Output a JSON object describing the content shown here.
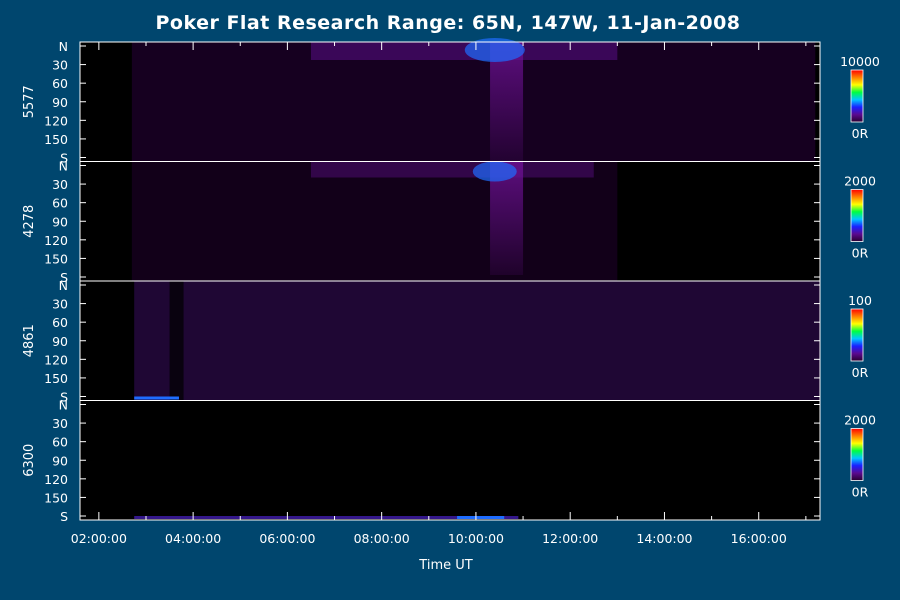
{
  "chart_data": {
    "type": "heatmap",
    "title": "Poker Flat Research Range: 65N, 147W, 11-Jan-2008",
    "xlabel": "Time UT",
    "x_ticks": [
      "02:00:00",
      "04:00:00",
      "06:00:00",
      "08:00:00",
      "10:00:00",
      "12:00:00",
      "14:00:00",
      "16:00:00"
    ],
    "x_range_hours": [
      1.6,
      17.3
    ],
    "y_ticks": [
      "N",
      "30",
      "60",
      "90",
      "120",
      "150",
      "S"
    ],
    "y_range_deg": [
      0,
      180
    ],
    "panels": [
      {
        "label": "5577",
        "scale_max": "10000",
        "scale_min": "0R"
      },
      {
        "label": "4278",
        "scale_max": "2000",
        "scale_min": "0R"
      },
      {
        "label": "4861",
        "scale_max": "100",
        "scale_min": "0R"
      },
      {
        "label": "6300",
        "scale_max": "2000",
        "scale_min": "0R"
      }
    ],
    "colors": {
      "background": "#00466e",
      "plot_background": "#000000",
      "foreground": "#ffffff",
      "colorbar": [
        "#2a0030",
        "#5a0a90",
        "#1a20ff",
        "#00c8ff",
        "#00ff40",
        "#ffff00",
        "#ff8000",
        "#ff0000"
      ]
    }
  }
}
